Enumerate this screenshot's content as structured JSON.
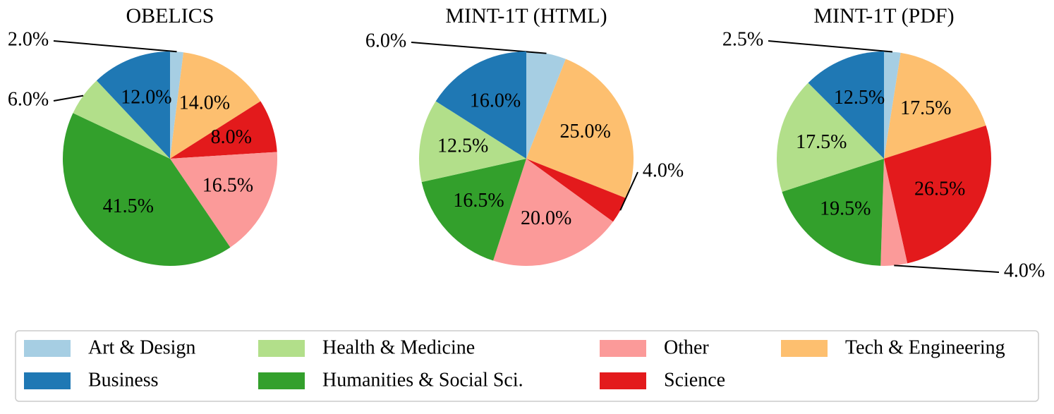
{
  "categories": [
    "Art & Design",
    "Tech & Engineering",
    "Science",
    "Other",
    "Humanities & Social Sci.",
    "Health & Medicine",
    "Business"
  ],
  "colors": {
    "Art & Design": "#a6cee3",
    "Business": "#1f78b4",
    "Health & Medicine": "#b2df8a",
    "Humanities & Social Sci.": "#33a02c",
    "Other": "#fb9a99",
    "Science": "#e31a1c",
    "Tech & Engineering": "#fdbf6f"
  },
  "chart_data": [
    {
      "type": "pie",
      "title": "OBELICS",
      "labels": [
        "Art & Design",
        "Tech & Engineering",
        "Science",
        "Other",
        "Humanities & Social Sci.",
        "Health & Medicine",
        "Business"
      ],
      "values": [
        2.0,
        14.0,
        8.0,
        16.5,
        41.5,
        6.0,
        12.0
      ],
      "value_labels": [
        "2.0%",
        "14.0%",
        "8.0%",
        "16.5%",
        "41.5%",
        "6.0%",
        "12.0%"
      ],
      "start_angle": 90,
      "direction": "clockwise"
    },
    {
      "type": "pie",
      "title": "MINT-1T (HTML)",
      "labels": [
        "Art & Design",
        "Tech & Engineering",
        "Science",
        "Other",
        "Humanities & Social Sci.",
        "Health & Medicine",
        "Business"
      ],
      "values": [
        6.0,
        25.0,
        4.0,
        20.0,
        16.5,
        12.5,
        16.0
      ],
      "value_labels": [
        "6.0%",
        "25.0%",
        "4.0%",
        "20.0%",
        "16.5%",
        "12.5%",
        "16.0%"
      ],
      "start_angle": 90,
      "direction": "clockwise"
    },
    {
      "type": "pie",
      "title": "MINT-1T (PDF)",
      "labels": [
        "Art & Design",
        "Tech & Engineering",
        "Science",
        "Other",
        "Humanities & Social Sci.",
        "Health & Medicine",
        "Business"
      ],
      "values": [
        2.5,
        17.5,
        26.5,
        4.0,
        19.5,
        17.5,
        12.5
      ],
      "value_labels": [
        "2.5%",
        "17.5%",
        "26.5%",
        "4.0%",
        "19.5%",
        "17.5%",
        "12.5%"
      ],
      "start_angle": 90,
      "direction": "clockwise"
    }
  ],
  "legend": {
    "placement": "bottom",
    "columns": 4,
    "entries": [
      "Art & Design",
      "Business",
      "Health & Medicine",
      "Humanities & Social Sci.",
      "Other",
      "Science",
      "Tech & Engineering"
    ]
  }
}
